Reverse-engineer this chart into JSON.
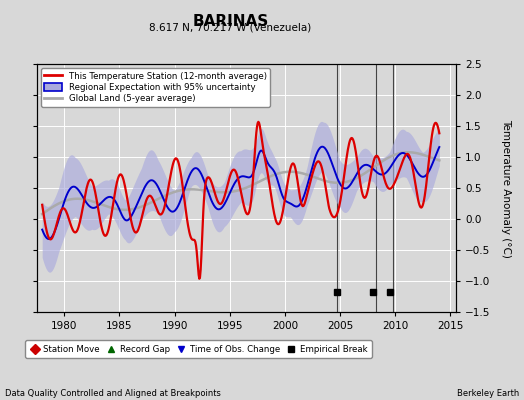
{
  "title": "BARINAS",
  "subtitle": "8.617 N, 70.217 W (Venezuela)",
  "ylabel": "Temperature Anomaly (°C)",
  "xlabel_left": "Data Quality Controlled and Aligned at Breakpoints",
  "xlabel_right": "Berkeley Earth",
  "xlim": [
    1977.5,
    2015.5
  ],
  "ylim": [
    -1.5,
    2.5
  ],
  "yticks": [
    -1.5,
    -1.0,
    -0.5,
    0.0,
    0.5,
    1.0,
    1.5,
    2.0,
    2.5
  ],
  "xticks": [
    1980,
    1985,
    1990,
    1995,
    2000,
    2005,
    2010,
    2015
  ],
  "background_color": "#d8d8d8",
  "plot_bg_color": "#d8d8d8",
  "grid_color": "#ffffff",
  "red_color": "#dd0000",
  "blue_color": "#0000cc",
  "blue_fill_color": "#aaaadd",
  "gray_color": "#aaaaaa",
  "vertical_lines": [
    2004.7,
    2008.3,
    2009.8
  ],
  "vertical_line_color": "#444444",
  "empirical_breaks": [
    2004.7,
    2008.0,
    2009.5
  ],
  "legend_items": [
    "This Temperature Station (12-month average)",
    "Regional Expectation with 95% uncertainty",
    "Global Land (5-year average)"
  ]
}
